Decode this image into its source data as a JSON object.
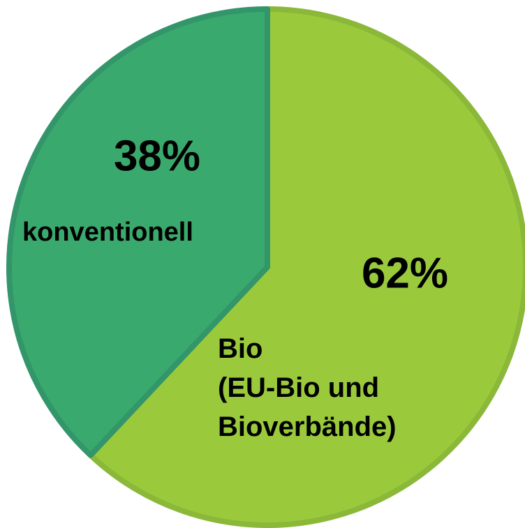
{
  "chart_data": {
    "type": "pie",
    "categories": [
      "Bio\n(EU-Bio und\nBioverbände)",
      "konventionell"
    ],
    "values": [
      62,
      38
    ],
    "value_labels": [
      "62%",
      "38%"
    ],
    "colors": [
      "#9aca3c",
      "#3aa96d"
    ]
  }
}
